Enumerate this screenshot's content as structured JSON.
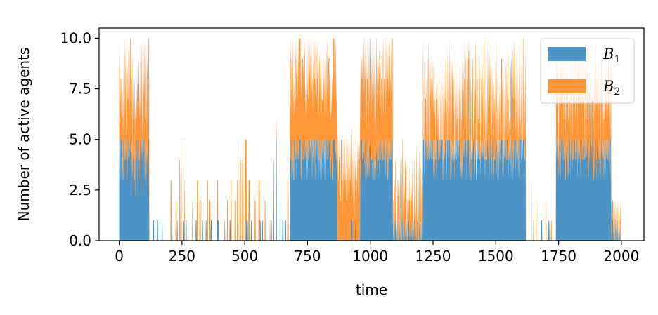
{
  "chart_data": {
    "type": "area",
    "stacked": true,
    "xlabel": "time",
    "ylabel": "Number of active agents",
    "xlim": [
      -80,
      2090
    ],
    "ylim": [
      0,
      10.5
    ],
    "xticks": [
      0,
      250,
      500,
      750,
      1000,
      1250,
      1500,
      1750,
      2000
    ],
    "xtick_labels": [
      "0",
      "250",
      "500",
      "750",
      "1000",
      "1250",
      "1500",
      "1750",
      "2000"
    ],
    "yticks": [
      0,
      2.5,
      5,
      7.5,
      10
    ],
    "ytick_labels": [
      "0.0",
      "2.5",
      "5.0",
      "7.5",
      "10.0"
    ],
    "legend": {
      "position": "top-right"
    },
    "series": [
      {
        "name": "B",
        "name_subscript": "1",
        "color": "#4c94c5",
        "segments": [
          {
            "start": 0,
            "end": 120,
            "level": 4.5,
            "var": 1.5
          },
          {
            "start": 120,
            "end": 680,
            "level": 0,
            "var": 0,
            "spikes": [
              [
                135,
                1
              ],
              [
                150,
                1
              ],
              [
                170,
                1
              ],
              [
                210,
                1
              ],
              [
                230,
                1
              ],
              [
                255,
                1
              ],
              [
                265,
                1
              ],
              [
                305,
                1
              ],
              [
                330,
                1
              ],
              [
                345,
                1
              ],
              [
                365,
                1
              ],
              [
                390,
                1
              ],
              [
                395,
                1
              ],
              [
                420,
                1
              ],
              [
                440,
                1
              ],
              [
                480,
                1
              ],
              [
                505,
                1
              ],
              [
                510,
                1
              ],
              [
                525,
                1
              ],
              [
                560,
                1
              ],
              [
                570,
                1
              ],
              [
                605,
                1
              ],
              [
                615,
                4
              ],
              [
                625,
                5
              ],
              [
                640,
                3
              ],
              [
                650,
                1
              ],
              [
                660,
                1
              ]
            ]
          },
          {
            "start": 680,
            "end": 870,
            "level": 4.5,
            "var": 1
          },
          {
            "start": 870,
            "end": 960,
            "level": 0,
            "var": 0,
            "spikes": [
              [
                900,
                1
              ],
              [
                925,
                1
              ],
              [
                940,
                1
              ]
            ]
          },
          {
            "start": 960,
            "end": 1090,
            "level": 4.5,
            "var": 1
          },
          {
            "start": 1090,
            "end": 1210,
            "level": 0.5,
            "var": 0.5
          },
          {
            "start": 1210,
            "end": 1620,
            "level": 4.6,
            "var": 1
          },
          {
            "start": 1620,
            "end": 1740,
            "level": 0,
            "var": 0,
            "spikes": [
              [
                1650,
                1
              ],
              [
                1680,
                1
              ],
              [
                1710,
                1
              ]
            ]
          },
          {
            "start": 1740,
            "end": 1960,
            "level": 4.5,
            "var": 1
          },
          {
            "start": 1960,
            "end": 2000,
            "level": 0.6,
            "var": 0.4
          }
        ]
      },
      {
        "name": "B",
        "name_subscript": "2",
        "color": "#ff9739",
        "segments": [
          {
            "start": 0,
            "end": 120,
            "level": 3.5,
            "var": 2
          },
          {
            "start": 120,
            "end": 680,
            "level": 0,
            "var": 0,
            "spikes": [
              [
                205,
                3
              ],
              [
                225,
                2
              ],
              [
                240,
                4
              ],
              [
                245,
                5
              ],
              [
                260,
                3
              ],
              [
                290,
                2
              ],
              [
                310,
                3
              ],
              [
                320,
                2
              ],
              [
                350,
                3
              ],
              [
                360,
                2
              ],
              [
                390,
                2
              ],
              [
                430,
                2
              ],
              [
                445,
                3
              ],
              [
                460,
                2
              ],
              [
                470,
                3
              ],
              [
                480,
                4
              ],
              [
                490,
                4
              ],
              [
                500,
                5
              ],
              [
                505,
                4
              ],
              [
                515,
                3
              ],
              [
                540,
                2
              ],
              [
                555,
                3
              ],
              [
                580,
                2
              ],
              [
                600,
                1
              ],
              [
                625,
                1
              ],
              [
                670,
                3
              ]
            ]
          },
          {
            "start": 680,
            "end": 870,
            "level": 4,
            "var": 1.5
          },
          {
            "start": 870,
            "end": 960,
            "level": 3.5,
            "var": 1.5
          },
          {
            "start": 960,
            "end": 1090,
            "level": 4.2,
            "var": 1.5
          },
          {
            "start": 1090,
            "end": 1210,
            "level": 1.5,
            "var": 2
          },
          {
            "start": 1210,
            "end": 1620,
            "level": 2.5,
            "var": 2
          },
          {
            "start": 1620,
            "end": 1740,
            "level": 0,
            "var": 0,
            "spikes": [
              [
                1640,
                3
              ],
              [
                1660,
                2
              ],
              [
                1700,
                2
              ],
              [
                1720,
                1
              ]
            ]
          },
          {
            "start": 1740,
            "end": 1960,
            "level": 3,
            "var": 1.5
          },
          {
            "start": 1960,
            "end": 2000,
            "level": 0.6,
            "var": 0.5
          }
        ]
      }
    ]
  }
}
